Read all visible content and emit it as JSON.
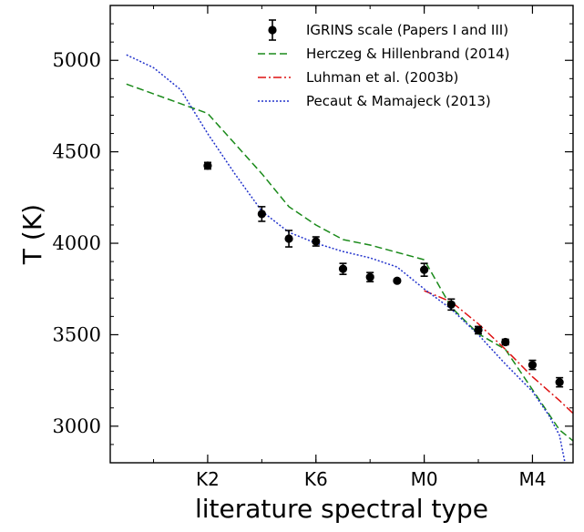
{
  "chart_data": {
    "type": "scatter",
    "xlabel": "literature spectral type",
    "ylabel": "T (K)",
    "xlim": [
      -0.8,
      7.75
    ],
    "ylim": [
      2800,
      5300
    ],
    "x_ticks": [
      {
        "value": 1,
        "label": "K2"
      },
      {
        "value": 3,
        "label": "K6"
      },
      {
        "value": 5,
        "label": "M0"
      },
      {
        "value": 7,
        "label": "M4"
      }
    ],
    "x_minor_ticks": [
      0,
      1,
      2,
      3,
      4,
      5,
      6,
      7
    ],
    "y_ticks": [
      3000,
      3500,
      4000,
      4500,
      5000
    ],
    "y_minor_step": 100,
    "legend_position": "top-right",
    "series": [
      {
        "name": "IGRINS scale (Papers I and III)",
        "style": "errorbar",
        "color": "#000000",
        "points": [
          {
            "x": 1.0,
            "y": 4424,
            "err": 18
          },
          {
            "x": 2.0,
            "y": 4160,
            "err": 40
          },
          {
            "x": 2.5,
            "y": 4025,
            "err": 45
          },
          {
            "x": 3.0,
            "y": 4010,
            "err": 25
          },
          {
            "x": 3.5,
            "y": 3860,
            "err": 30
          },
          {
            "x": 4.0,
            "y": 3815,
            "err": 25
          },
          {
            "x": 4.5,
            "y": 3795,
            "err": 8
          },
          {
            "x": 5.0,
            "y": 3855,
            "err": 35
          },
          {
            "x": 5.5,
            "y": 3665,
            "err": 30
          },
          {
            "x": 6.0,
            "y": 3525,
            "err": 20
          },
          {
            "x": 6.5,
            "y": 3460,
            "err": 15
          },
          {
            "x": 7.0,
            "y": 3335,
            "err": 25
          },
          {
            "x": 7.5,
            "y": 3240,
            "err": 25
          }
        ]
      },
      {
        "name": "Herczeg & Hillenbrand (2014)",
        "style": "dashed",
        "color": "#1a8a1a",
        "x": [
          -0.5,
          1.0,
          2.0,
          2.5,
          3.0,
          3.5,
          4.0,
          5.0,
          5.5,
          6.0,
          6.5,
          7.0,
          7.5,
          8.0
        ],
        "y": [
          4870,
          4710,
          4380,
          4200,
          4100,
          4020,
          3990,
          3910,
          3650,
          3505,
          3420,
          3200,
          2980,
          2860
        ]
      },
      {
        "name": "Luhman et al. (2003b)",
        "style": "dashdot",
        "color": "#dd1111",
        "x": [
          5.0,
          5.5,
          6.0,
          6.5,
          7.0,
          7.5,
          8.0
        ],
        "y": [
          3740,
          3680,
          3560,
          3420,
          3270,
          3140,
          3000
        ]
      },
      {
        "name": "Pecaut & Mamajeck (2013)",
        "style": "dotted",
        "color": "#2233cc",
        "x": [
          -0.5,
          0.0,
          0.5,
          1.0,
          1.5,
          2.0,
          2.5,
          3.0,
          3.5,
          4.0,
          4.5,
          5.0,
          5.5,
          6.0,
          6.5,
          7.0,
          7.3,
          7.5,
          7.6
        ],
        "y": [
          5030,
          4960,
          4840,
          4600,
          4380,
          4175,
          4060,
          4000,
          3955,
          3920,
          3870,
          3750,
          3640,
          3500,
          3340,
          3190,
          3060,
          2950,
          2800
        ]
      }
    ]
  }
}
